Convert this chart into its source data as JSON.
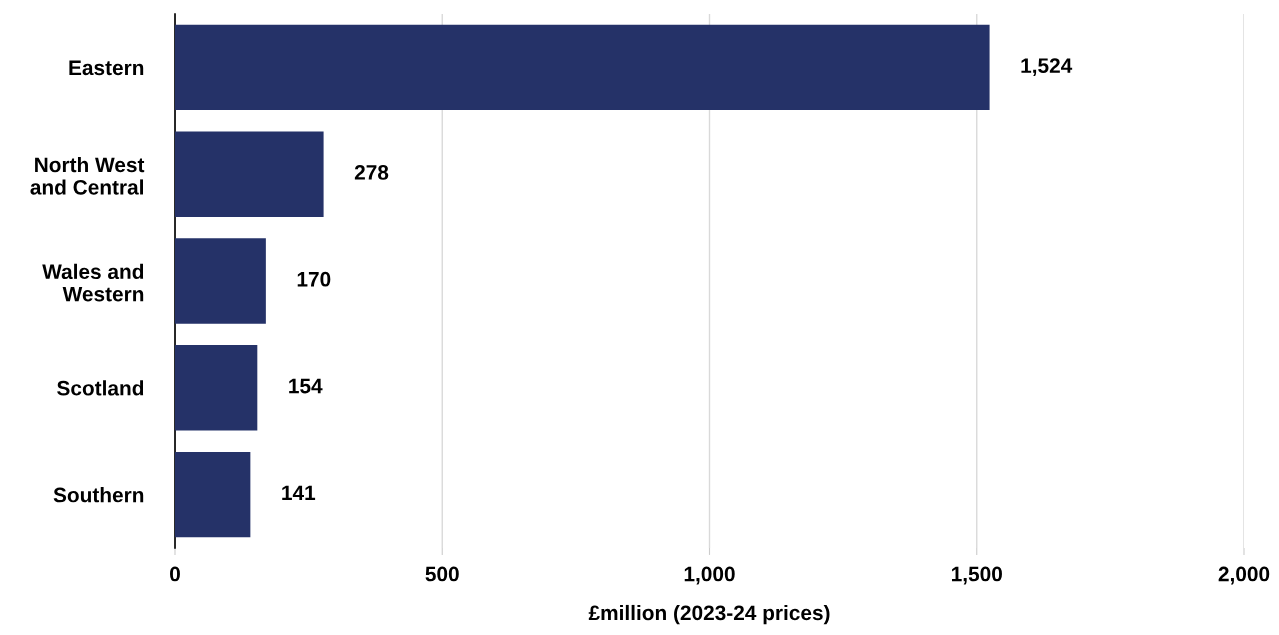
{
  "chart_data": {
    "type": "bar",
    "orientation": "horizontal",
    "xlabel": "£million (2023-24 prices)",
    "categories": [
      "Eastern",
      "North West\nand Central",
      "Wales and\nWestern",
      "Scotland",
      "Southern"
    ],
    "values": [
      1524,
      278,
      170,
      154,
      141
    ],
    "value_labels": [
      "1,524",
      "278",
      "170",
      "154",
      "141"
    ],
    "color": "#253268",
    "xlim": [
      0,
      2000
    ],
    "xticks": [
      0,
      500,
      {
        "value": 1000,
        "label": "1,000"
      },
      {
        "value": 1500,
        "label": "1,500"
      },
      {
        "value": 2000,
        "label": "2,000"
      }
    ],
    "grid": "x",
    "legend": false
  }
}
